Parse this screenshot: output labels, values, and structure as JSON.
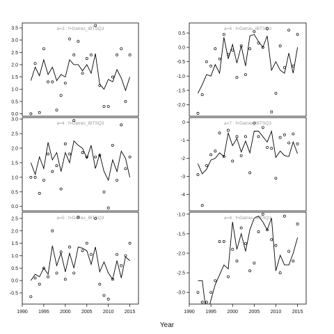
{
  "figure": {
    "xlabel": "Year",
    "colors": {
      "line": "#000000",
      "point": "#000000",
      "title": "#9a9a9a",
      "frame": "#000000"
    },
    "layout": "3 rows x 2 columns"
  },
  "chart_data": [
    {
      "type": "line",
      "title": "a=3  :  f=Datras_IBTSQ3",
      "xlim": [
        1990,
        2017
      ],
      "ylim": [
        -0.1,
        3.7
      ],
      "yticks": [
        0.0,
        0.5,
        1.0,
        1.5,
        2.0,
        2.5,
        3.0,
        3.5
      ],
      "xticks": [],
      "series": [
        {
          "kind": "line",
          "x": [
            1992,
            1993,
            1994,
            1995,
            1996,
            1997,
            1998,
            1999,
            2000,
            2001,
            2002,
            2003,
            2004,
            2005,
            2006,
            2007,
            2008,
            2009,
            2010,
            2011,
            2012,
            2013,
            2014,
            2015
          ],
          "y": [
            1.35,
            1.9,
            1.55,
            2.2,
            1.6,
            1.9,
            1.35,
            1.6,
            1.5,
            2.2,
            2.0,
            2.0,
            1.75,
            2.0,
            1.65,
            2.45,
            1.2,
            1.0,
            1.4,
            1.3,
            1.8,
            1.45,
            0.95,
            1.5
          ]
        },
        {
          "kind": "points",
          "x": [
            1992,
            1993,
            1994,
            1995,
            1996,
            1997,
            1998,
            1999,
            2000,
            2001,
            2002,
            2003,
            2004,
            2005,
            2006,
            2007,
            2008,
            2009,
            2010,
            2011,
            2012,
            2013,
            2014,
            2015
          ],
          "y": [
            0.0,
            2.05,
            0.05,
            2.65,
            1.3,
            1.3,
            0.15,
            0.75,
            1.25,
            3.05,
            2.4,
            2.95,
            1.65,
            2.25,
            2.4,
            3.6,
            1.15,
            0.3,
            0.3,
            1.5,
            2.4,
            2.65,
            0.5,
            2.4
          ]
        }
      ]
    },
    {
      "type": "line",
      "title": "a=6  :  f=Datras_IBTSQ3",
      "xlim": [
        1990,
        2017
      ],
      "ylim": [
        -2.4,
        0.85
      ],
      "yticks": [
        -2.0,
        -1.5,
        -1.0,
        -0.5,
        0.0,
        0.5
      ],
      "xticks": [],
      "series": [
        {
          "kind": "line",
          "x": [
            1992,
            1993,
            1994,
            1995,
            1996,
            1997,
            1998,
            1999,
            2000,
            2001,
            2002,
            2003,
            2004,
            2005,
            2006,
            2007,
            2008,
            2009,
            2010,
            2011,
            2012,
            2013,
            2014,
            2015
          ],
          "y": [
            -1.6,
            -1.3,
            -0.95,
            -1.0,
            -0.6,
            -0.9,
            0.35,
            -0.4,
            0.1,
            -0.55,
            0.05,
            -0.65,
            0.4,
            0.45,
            0.2,
            0.0,
            0.4,
            -0.8,
            -0.5,
            -0.8,
            -0.9,
            -0.2,
            -0.9,
            0.0
          ]
        },
        {
          "kind": "points",
          "x": [
            1992,
            1993,
            1994,
            1995,
            1996,
            1997,
            1998,
            1999,
            2000,
            2001,
            2002,
            2003,
            2004,
            2005,
            2006,
            2007,
            2008,
            2009,
            2010,
            2011,
            2012,
            2013,
            2014,
            2015
          ],
          "y": [
            -2.3,
            -1.65,
            -0.5,
            -0.65,
            -0.05,
            -0.4,
            0.45,
            -0.25,
            -0.1,
            -1.05,
            0.05,
            -0.95,
            -0.05,
            0.55,
            0.15,
            0.0,
            0.65,
            -2.25,
            -1.6,
            0.05,
            -0.7,
            0.6,
            -0.65,
            0.45
          ]
        }
      ]
    },
    {
      "type": "line",
      "title": "a=4  :  f=Datras_IBTSQ3",
      "xlim": [
        1990,
        2017
      ],
      "ylim": [
        -0.15,
        3.05
      ],
      "yticks": [
        0.0,
        0.5,
        1.0,
        1.5,
        2.0,
        2.5,
        3.0
      ],
      "xticks": [],
      "series": [
        {
          "kind": "line",
          "x": [
            1992,
            1993,
            1994,
            1995,
            1996,
            1997,
            1998,
            1999,
            2000,
            2001,
            2002,
            2003,
            2004,
            2005,
            2006,
            2007,
            2008,
            2009,
            2010,
            2011,
            2012,
            2013,
            2014,
            2015
          ],
          "y": [
            1.5,
            1.1,
            1.7,
            1.3,
            2.2,
            1.6,
            1.85,
            1.2,
            1.85,
            1.5,
            2.25,
            2.1,
            2.0,
            1.65,
            2.1,
            1.3,
            1.8,
            1.2,
            0.9,
            1.6,
            1.2,
            1.9,
            1.65,
            1.0
          ]
        },
        {
          "kind": "points",
          "x": [
            1992,
            1993,
            1994,
            1995,
            1996,
            1997,
            1998,
            1999,
            2000,
            2001,
            2002,
            2003,
            2004,
            2005,
            2006,
            2007,
            2008,
            2009,
            2010,
            2011,
            2012,
            2013,
            2014,
            2015
          ],
          "y": [
            1.0,
            1.0,
            0.45,
            0.9,
            1.8,
            1.2,
            1.4,
            0.6,
            2.15,
            1.8,
            2.95,
            3.15,
            1.85,
            1.7,
            3.3,
            1.7,
            1.75,
            0.5,
            -0.05,
            2.1,
            0.9,
            2.8,
            1.3,
            1.7
          ]
        }
      ]
    },
    {
      "type": "line",
      "title": "a=7  :  f=Datras_IBTSQ3",
      "xlim": [
        1990,
        2017
      ],
      "ylim": [
        -4.9,
        0.25
      ],
      "yticks": [
        0,
        -1,
        -2,
        -3,
        -4
      ],
      "xticks": [],
      "series": [
        {
          "kind": "line",
          "x": [
            1992,
            1993,
            1994,
            1995,
            1996,
            1997,
            1998,
            1999,
            2000,
            2001,
            2002,
            2003,
            2004,
            2005,
            2006,
            2007,
            2008,
            2009,
            2010,
            2011,
            2012,
            2013,
            2014,
            2015
          ],
          "y": [
            -2.3,
            -2.85,
            -2.6,
            -2.1,
            -2.0,
            -1.7,
            -1.9,
            -0.6,
            -1.3,
            -0.9,
            -1.65,
            -1.05,
            -1.7,
            -0.5,
            -0.5,
            -0.8,
            -1.1,
            -0.5,
            -1.95,
            -1.6,
            -1.85,
            -1.9,
            -1.1,
            -1.75
          ]
        },
        {
          "kind": "points",
          "x": [
            1992,
            1993,
            1994,
            1995,
            1996,
            1997,
            1998,
            1999,
            2000,
            2001,
            2002,
            2003,
            2004,
            2005,
            2006,
            2007,
            2008,
            2009,
            2010,
            2011,
            2012,
            2013,
            2014,
            2015
          ],
          "y": [
            -2.9,
            -4.6,
            -2.4,
            -1.8,
            -1.6,
            -0.6,
            -1.9,
            -0.45,
            -2.15,
            -0.8,
            -1.85,
            -0.8,
            -2.8,
            -0.05,
            -0.8,
            -0.3,
            -1.4,
            -1.45,
            -3.1,
            -0.85,
            -0.7,
            -1.15,
            -0.65,
            -1.2
          ]
        }
      ]
    },
    {
      "type": "line",
      "title": "a=5  :  f=Datras_IBTSQ3",
      "xlim": [
        1990,
        2017
      ],
      "ylim": [
        -0.95,
        2.75
      ],
      "yticks": [
        -0.5,
        0.0,
        0.5,
        1.0,
        1.5,
        2.0,
        2.5
      ],
      "xticks": [
        1990,
        1995,
        2000,
        2005,
        2010,
        2015
      ],
      "series": [
        {
          "kind": "line",
          "x": [
            1992,
            1993,
            1994,
            1995,
            1996,
            1997,
            1998,
            1999,
            2000,
            2001,
            2002,
            2003,
            2004,
            2005,
            2006,
            2007,
            2008,
            2009,
            2010,
            2011,
            2012,
            2013,
            2014,
            2015
          ],
          "y": [
            0.0,
            0.25,
            0.15,
            0.5,
            0.25,
            1.4,
            0.6,
            1.1,
            0.35,
            1.1,
            0.5,
            1.35,
            1.3,
            1.2,
            0.65,
            1.35,
            0.35,
            0.75,
            0.3,
            0.05,
            0.8,
            0.1,
            0.95,
            0.8
          ]
        },
        {
          "kind": "points",
          "x": [
            1992,
            1993,
            1994,
            1995,
            1996,
            1997,
            1998,
            1999,
            2000,
            2001,
            2002,
            2003,
            2004,
            2005,
            2006,
            2007,
            2008,
            2009,
            2010,
            2011,
            2012,
            2013,
            2014,
            2015
          ],
          "y": [
            -0.65,
            0.1,
            -0.15,
            0.5,
            0.15,
            2.0,
            0.3,
            1.15,
            0.05,
            1.35,
            0.3,
            2.55,
            1.2,
            1.5,
            1.05,
            2.5,
            -0.15,
            -0.6,
            -0.75,
            0.05,
            1.05,
            0.6,
            1.0,
            1.5
          ]
        }
      ]
    },
    {
      "type": "line",
      "title": "a=8  :  f=Datras_IBTSQ3",
      "xlim": [
        1990,
        2017
      ],
      "ylim": [
        -3.3,
        -0.95
      ],
      "yticks": [
        -1.0,
        -1.5,
        -2.0,
        -2.5,
        -3.0
      ],
      "xticks": [
        1990,
        1995,
        2000,
        2005,
        2010,
        2015
      ],
      "series": [
        {
          "kind": "line",
          "x": [
            1992,
            1993,
            1994,
            1995,
            1996,
            1997,
            1998,
            1999,
            2000,
            2001,
            2002,
            2003,
            2004,
            2005,
            2006,
            2007,
            2008,
            2009,
            2010,
            2011,
            2012,
            2013,
            2014,
            2015
          ],
          "y": [
            -2.7,
            -2.7,
            -3.6,
            -3.2,
            -2.8,
            -2.55,
            -2.3,
            -2.4,
            -1.2,
            -1.9,
            -1.5,
            -1.95,
            -1.4,
            -1.1,
            -1.05,
            -1.2,
            -1.4,
            -1.1,
            -2.45,
            -2.05,
            -2.3,
            -2.3,
            -2.0,
            -1.6
          ]
        },
        {
          "kind": "points",
          "x": [
            1992,
            1993,
            1994,
            1995,
            1996,
            1997,
            1998,
            1999,
            2000,
            2001,
            2002,
            2003,
            2004,
            2005,
            2006,
            2007,
            2008,
            2009,
            2010,
            2011,
            2012,
            2013,
            2014,
            2015
          ],
          "y": [
            -3.0,
            -3.25,
            -3.25,
            -3.0,
            -2.7,
            -1.7,
            -1.7,
            -2.6,
            -1.9,
            -2.2,
            -1.35,
            -1.75,
            -2.45,
            -2.25,
            -1.45,
            -1.0,
            -1.4,
            -1.65,
            -1.8,
            -2.5,
            -1.05,
            -1.95,
            -2.2,
            -1.25
          ]
        }
      ]
    }
  ]
}
